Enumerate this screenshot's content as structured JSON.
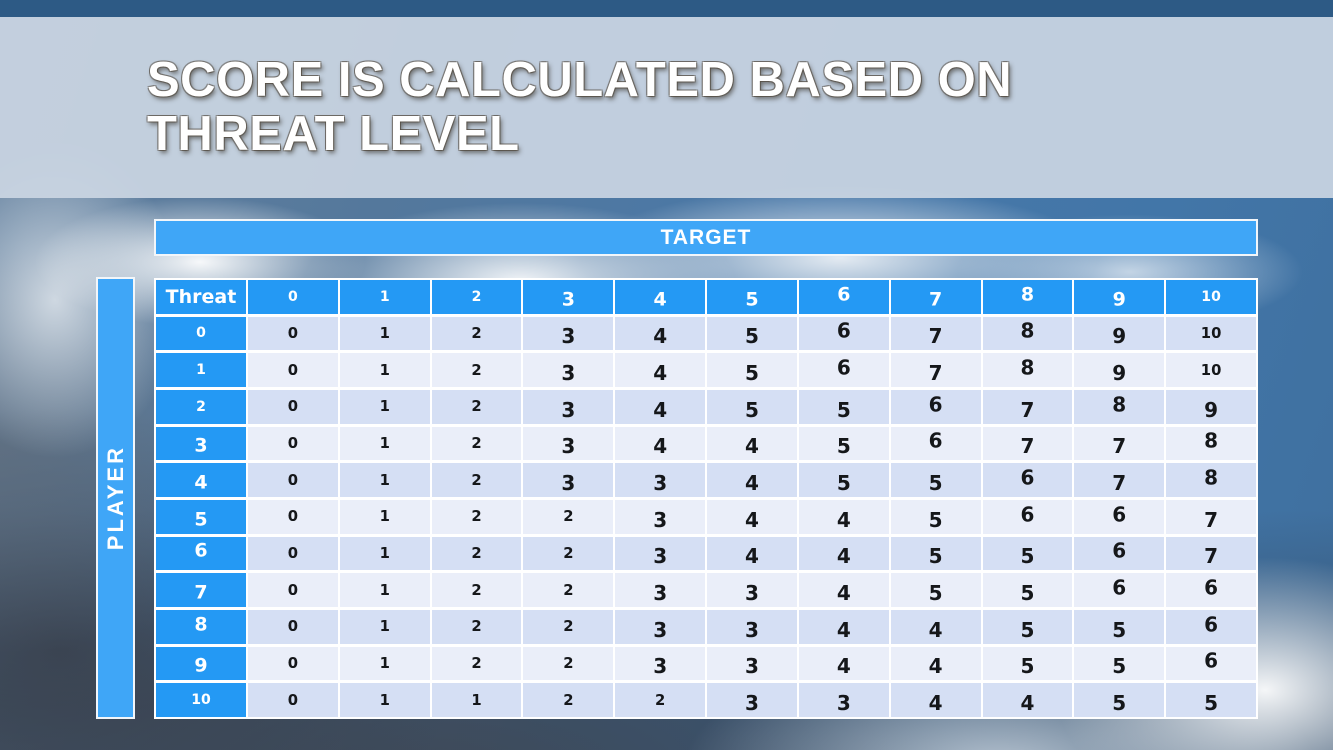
{
  "slide": {
    "title_line1": "SCORE IS CALCULATED BASED ON",
    "title_line2": "THREAT LEVEL"
  },
  "table": {
    "target_label": "TARGET",
    "player_label": "PLAYER",
    "corner_label": "Threat",
    "column_headers": [
      "0",
      "1",
      "2",
      "3",
      "4",
      "5",
      "6",
      "7",
      "8",
      "9",
      "10"
    ],
    "rows": [
      {
        "label": "0",
        "values": [
          "0",
          "1",
          "2",
          "3",
          "4",
          "5",
          "6",
          "7",
          "8",
          "9",
          "10"
        ]
      },
      {
        "label": "1",
        "values": [
          "0",
          "1",
          "2",
          "3",
          "4",
          "5",
          "6",
          "7",
          "8",
          "9",
          "10"
        ]
      },
      {
        "label": "2",
        "values": [
          "0",
          "1",
          "2",
          "3",
          "4",
          "5",
          "5",
          "6",
          "7",
          "8",
          "9"
        ]
      },
      {
        "label": "3",
        "values": [
          "0",
          "1",
          "2",
          "3",
          "4",
          "4",
          "5",
          "6",
          "7",
          "7",
          "8"
        ]
      },
      {
        "label": "4",
        "values": [
          "0",
          "1",
          "2",
          "3",
          "3",
          "4",
          "5",
          "5",
          "6",
          "7",
          "8"
        ]
      },
      {
        "label": "5",
        "values": [
          "0",
          "1",
          "2",
          "2",
          "3",
          "4",
          "4",
          "5",
          "6",
          "6",
          "7"
        ]
      },
      {
        "label": "6",
        "values": [
          "0",
          "1",
          "2",
          "2",
          "3",
          "4",
          "4",
          "5",
          "5",
          "6",
          "7"
        ]
      },
      {
        "label": "7",
        "values": [
          "0",
          "1",
          "2",
          "2",
          "3",
          "3",
          "4",
          "5",
          "5",
          "6",
          "6"
        ]
      },
      {
        "label": "8",
        "values": [
          "0",
          "1",
          "2",
          "2",
          "3",
          "3",
          "4",
          "4",
          "5",
          "5",
          "6"
        ]
      },
      {
        "label": "9",
        "values": [
          "0",
          "1",
          "2",
          "2",
          "3",
          "3",
          "4",
          "4",
          "5",
          "5",
          "6"
        ]
      },
      {
        "label": "10",
        "values": [
          "0",
          "1",
          "1",
          "2",
          "2",
          "3",
          "3",
          "4",
          "4",
          "5",
          "5"
        ]
      }
    ]
  },
  "colors": {
    "accent_blue": "#2499F4",
    "accent_bar_blue": "#3FA6F7",
    "row_stripe_dark": "#D5DFF4",
    "row_stripe_light": "#EAEEF9",
    "top_bar_blue": "#2D5A85"
  }
}
